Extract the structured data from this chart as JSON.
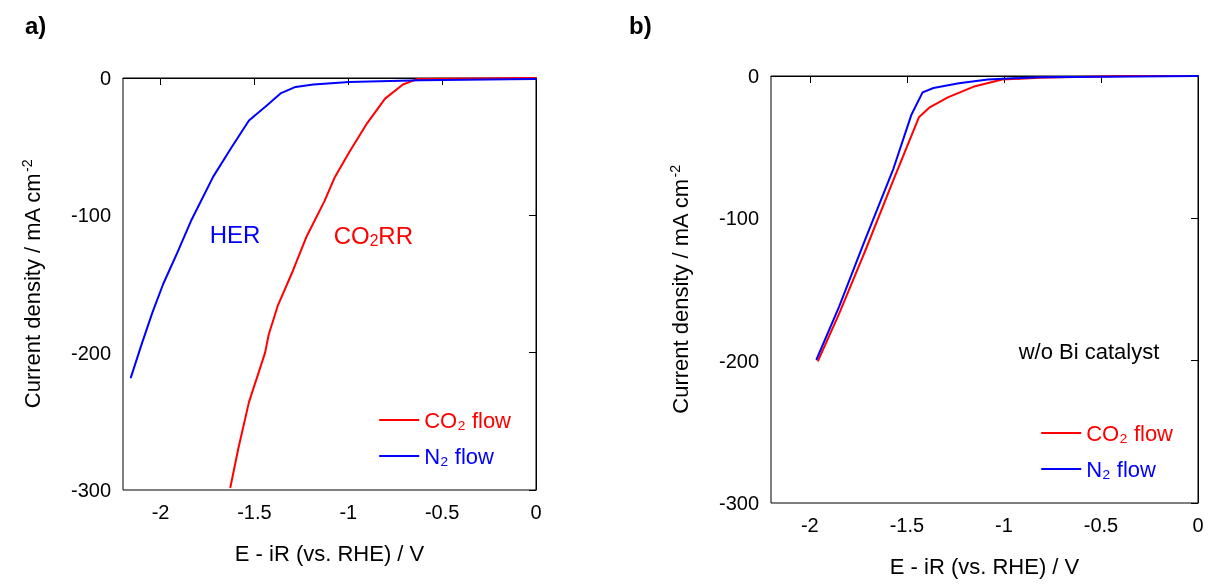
{
  "chart_data": [
    {
      "type": "line",
      "title": "a)",
      "xlabel": "E - iR (vs. RHE) / V",
      "ylabel": "Current density / mA cm$^{-2}$",
      "xlim": [
        -2.2,
        0
      ],
      "xticks": [
        -2,
        -1.5,
        -1,
        -0.5,
        0
      ],
      "ylim": [
        -300,
        0
      ],
      "yticks": [
        -300,
        -200,
        -100,
        0
      ],
      "legend": "bottom right",
      "grid": false,
      "marker": "none",
      "line_style": "solid",
      "annotations": [
        "HER",
        "CO$_{2}$RR"
      ],
      "series": [
        {
          "name": "CO₂ flow",
          "color": "#ff0000",
          "x": [
            -1.628,
            -1.586,
            -1.529,
            -1.443,
            -1.424,
            -1.376,
            -1.3,
            -1.224,
            -1.128,
            -1.071,
            -0.995,
            -0.9,
            -0.804,
            -0.709,
            -0.633,
            0
          ],
          "values": [
            -298,
            -270,
            -236,
            -200,
            -187,
            -166,
            -142,
            -116,
            -90,
            -72,
            -54,
            -33,
            -15,
            -4.7,
            -0.8,
            0
          ]
        },
        {
          "name": "N₂ flow",
          "color": "#0000ff",
          "x": [
            -2.158,
            -2.101,
            -2.044,
            -1.986,
            -1.91,
            -1.834,
            -1.72,
            -1.624,
            -1.529,
            -1.434,
            -1.358,
            -1.281,
            -1.186,
            -0.995,
            -0.614,
            0
          ],
          "values": [
            -218,
            -194,
            -171,
            -150,
            -127,
            -103,
            -72,
            -51,
            -31,
            -20,
            -11,
            -6.5,
            -4.7,
            -2.9,
            -1.6,
            -0.8
          ]
        }
      ]
    },
    {
      "type": "line",
      "title": "b)",
      "xlabel": "E - iR (vs. RHE) / V",
      "ylabel": "Current density / mA cm$^{-2}$",
      "xlim": [
        -2.2,
        0
      ],
      "xticks": [
        -2,
        -1.5,
        -1,
        -0.5,
        0
      ],
      "ylim": [
        -300,
        0
      ],
      "yticks": [
        -300,
        -200,
        -100,
        0
      ],
      "legend": "bottom right",
      "grid": false,
      "marker": "none",
      "line_style": "solid",
      "annotations": [
        "w/o Bi catalyst"
      ],
      "series": [
        {
          "name": "CO₂ flow",
          "color": "#ff0000",
          "x": [
            -1.957,
            -1.849,
            -1.718,
            -1.569,
            -1.438,
            -1.382,
            -1.289,
            -1.158,
            -1.009,
            -0.822,
            -0.374,
            0
          ],
          "values": [
            -200,
            -167,
            -124,
            -73,
            -29,
            -22,
            -15,
            -7.6,
            -2.5,
            -1.3,
            0,
            0
          ]
        },
        {
          "name": "N₂ flow",
          "color": "#0000ff",
          "x": [
            -1.965,
            -1.849,
            -1.718,
            -1.569,
            -1.476,
            -1.419,
            -1.363,
            -1.232,
            -1.083,
            -0.822,
            0
          ],
          "values": [
            -199,
            -162,
            -116,
            -65,
            -27,
            -11.5,
            -8.4,
            -5.1,
            -2.5,
            -0.8,
            0
          ]
        }
      ]
    }
  ]
}
